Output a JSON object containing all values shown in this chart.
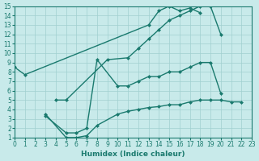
{
  "bg_color": "#c8eaea",
  "line_color": "#1a7a6e",
  "grid_color": "#a0d0d0",
  "xlabel": "Humidex (Indice chaleur)",
  "xlim": [
    0,
    23
  ],
  "ylim": [
    1,
    15
  ],
  "xticks": [
    0,
    1,
    2,
    3,
    4,
    5,
    6,
    7,
    8,
    9,
    10,
    11,
    12,
    13,
    14,
    15,
    16,
    17,
    18,
    19,
    20,
    21,
    22,
    23
  ],
  "yticks": [
    1,
    2,
    3,
    4,
    5,
    6,
    7,
    8,
    9,
    10,
    11,
    12,
    13,
    14,
    15
  ],
  "series": [
    {
      "x": [
        0,
        1,
        13,
        14,
        15,
        16,
        17,
        18
      ],
      "y": [
        8.5,
        7.7,
        13.0,
        14.5,
        15.0,
        14.5,
        14.8,
        14.3
      ]
    },
    {
      "x": [
        4,
        5,
        9,
        11,
        12,
        13,
        14,
        15,
        16,
        17,
        18,
        19,
        20
      ],
      "y": [
        5.0,
        5.0,
        9.3,
        9.5,
        10.5,
        11.5,
        12.5,
        13.5,
        14.0,
        14.5,
        15.0,
        15.0,
        12.0
      ]
    },
    {
      "x": [
        3,
        5,
        6,
        7,
        8,
        10,
        11,
        12,
        13,
        14,
        15,
        16,
        17,
        18,
        19,
        20
      ],
      "y": [
        3.3,
        1.5,
        1.5,
        2.0,
        9.3,
        6.5,
        6.5,
        7.0,
        7.5,
        7.5,
        8.0,
        8.0,
        8.5,
        9.0,
        9.0,
        5.7
      ]
    },
    {
      "x": [
        3,
        5,
        6,
        7,
        8,
        10,
        11,
        12,
        13,
        14,
        15,
        16,
        17,
        18,
        19,
        20,
        21,
        22
      ],
      "y": [
        3.5,
        1.0,
        1.0,
        1.2,
        2.3,
        3.5,
        3.8,
        4.0,
        4.2,
        4.3,
        4.5,
        4.5,
        4.8,
        5.0,
        5.0,
        5.0,
        4.8,
        4.8
      ]
    }
  ]
}
